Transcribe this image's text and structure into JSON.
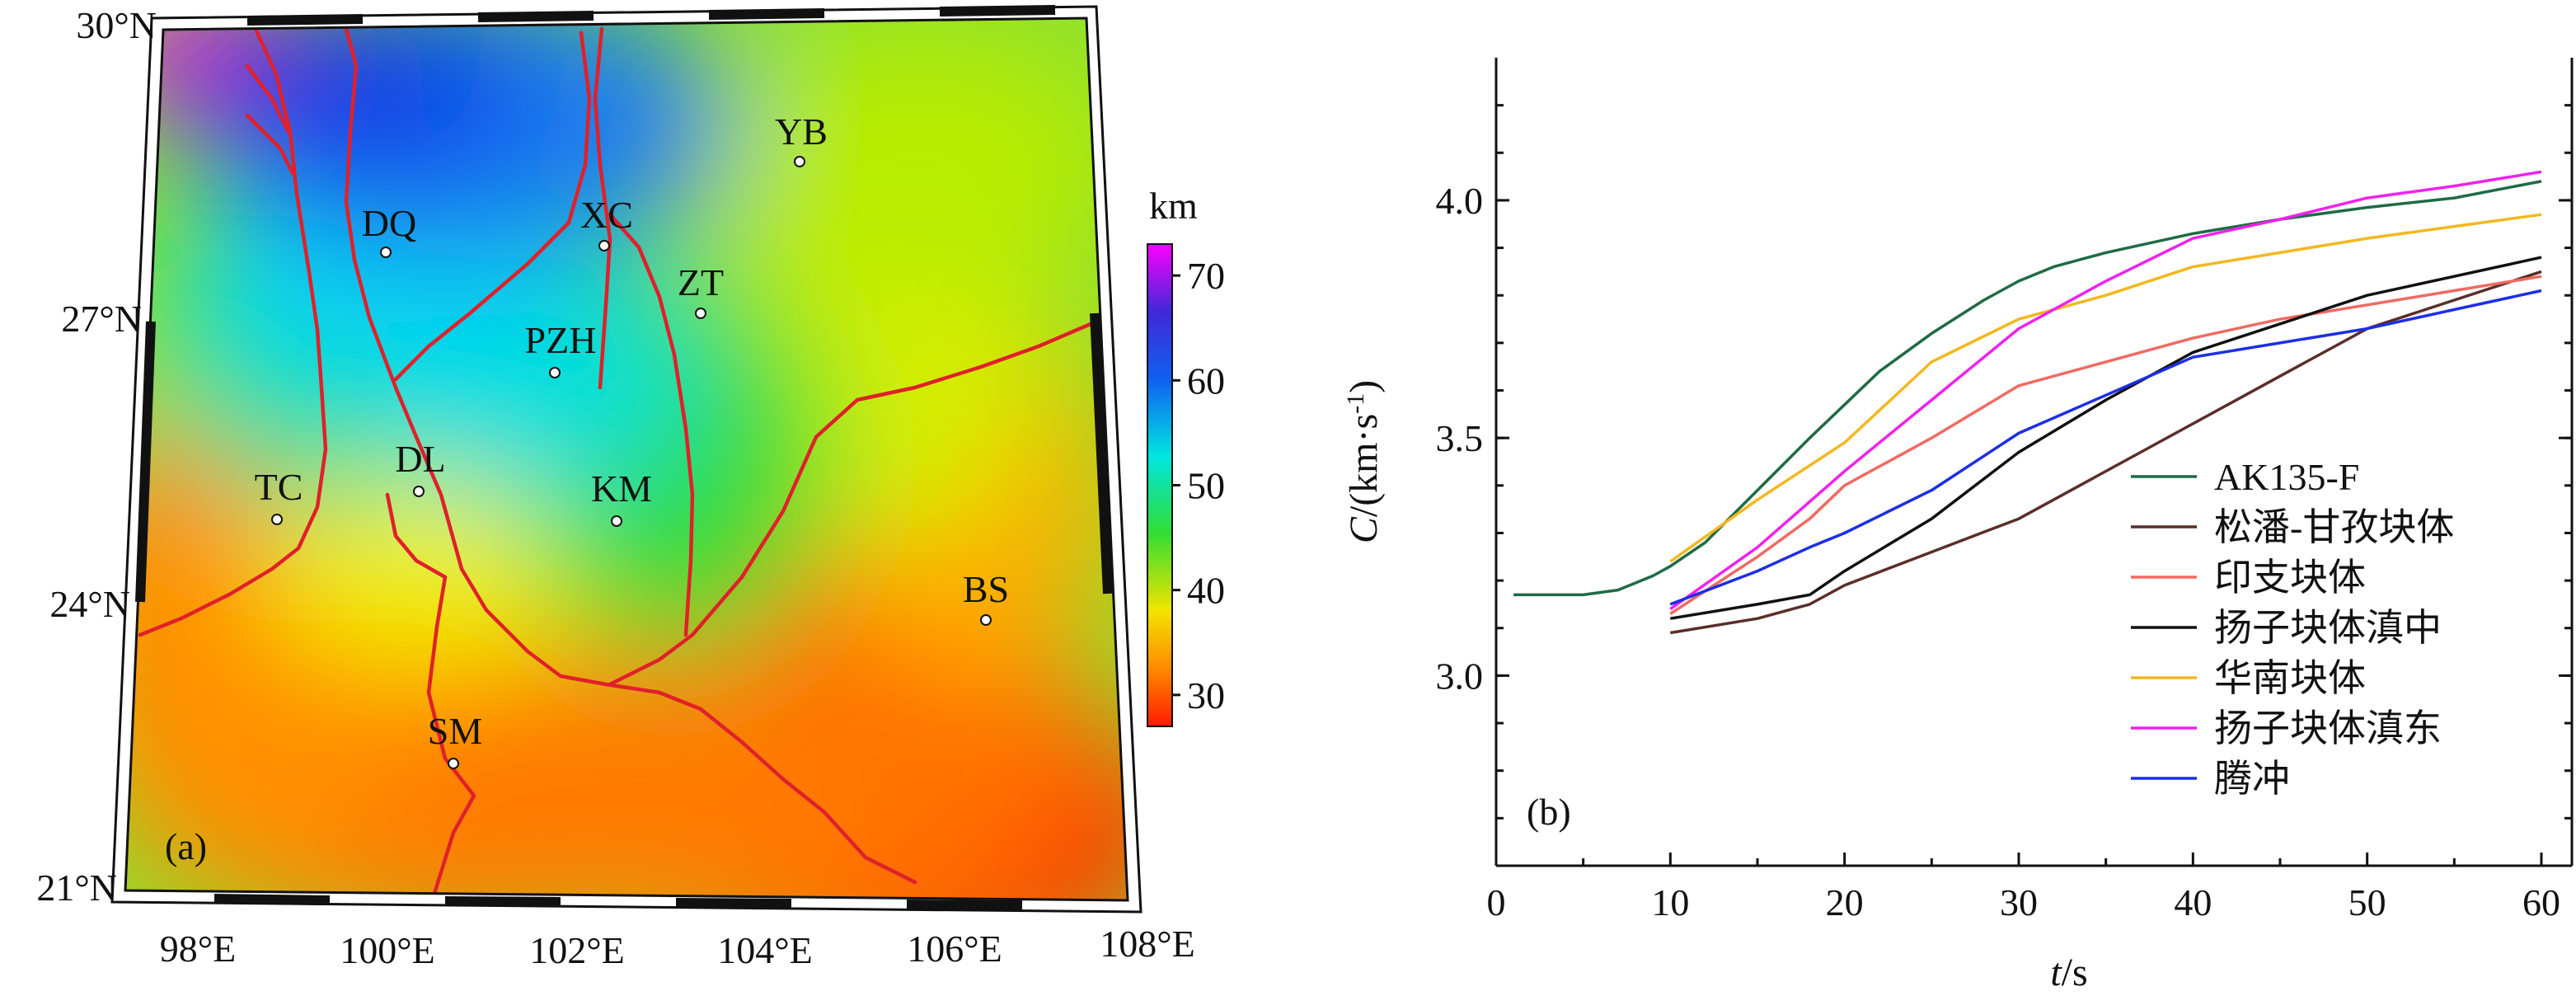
{
  "chart_data": [
    {
      "type": "heatmap",
      "panel_label": "(a)",
      "colorbar": {
        "unit": "km",
        "ticks": [
          30,
          40,
          50,
          60,
          70
        ],
        "range": [
          27,
          73
        ]
      },
      "lat_labels": [
        "30°N",
        "27°N",
        "24°N",
        "21°N"
      ],
      "lon_labels": [
        "98°E",
        "100°E",
        "102°E",
        "104°E",
        "106°E",
        "108°E"
      ],
      "stations": [
        {
          "code": "YB"
        },
        {
          "code": "DQ"
        },
        {
          "code": "XC"
        },
        {
          "code": "ZT"
        },
        {
          "code": "PZH"
        },
        {
          "code": "TC"
        },
        {
          "code": "DL"
        },
        {
          "code": "KM"
        },
        {
          "code": "BS"
        },
        {
          "code": "SM"
        }
      ]
    },
    {
      "type": "line",
      "panel_label": "(b)",
      "xlabel_italic": "t",
      "xlabel_rest": "/s",
      "ylabel_italic": "C",
      "ylabel_rest": "/(km·s",
      "ylabel_sup": "-1",
      "ylabel_close": ")",
      "xlim": [
        0,
        60
      ],
      "ylim": [
        2.6,
        4.3
      ],
      "xticks": [
        0,
        10,
        20,
        30,
        40,
        50,
        60
      ],
      "yticks": [
        "3.0",
        "3.5",
        "4.0"
      ],
      "series": [
        {
          "name": "AK135-F",
          "color": "#1e6b45",
          "x": [
            1,
            2,
            3,
            4,
            5,
            6,
            7,
            8,
            9,
            10,
            12,
            15,
            18,
            20,
            22,
            25,
            28,
            30,
            32,
            35,
            40,
            45,
            50,
            55,
            60
          ],
          "y": [
            3.17,
            3.17,
            3.17,
            3.17,
            3.17,
            3.175,
            3.18,
            3.195,
            3.21,
            3.23,
            3.28,
            3.39,
            3.5,
            3.57,
            3.64,
            3.72,
            3.79,
            3.83,
            3.86,
            3.89,
            3.93,
            3.96,
            3.985,
            4.005,
            4.04
          ]
        },
        {
          "name": "松潘-甘孜块体",
          "color": "#5a2e2a",
          "x": [
            10,
            15,
            18,
            20,
            25,
            30,
            35,
            40,
            45,
            50,
            55,
            60
          ],
          "y": [
            3.09,
            3.12,
            3.15,
            3.19,
            3.26,
            3.33,
            3.43,
            3.53,
            3.63,
            3.73,
            3.79,
            3.85
          ]
        },
        {
          "name": "印支块体",
          "color": "#f06a62",
          "x": [
            10,
            15,
            18,
            20,
            25,
            30,
            35,
            40,
            45,
            50,
            55,
            60
          ],
          "y": [
            3.13,
            3.25,
            3.33,
            3.4,
            3.5,
            3.61,
            3.66,
            3.71,
            3.75,
            3.78,
            3.81,
            3.84
          ]
        },
        {
          "name": "扬子块体滇中",
          "color": "#111111",
          "x": [
            10,
            15,
            18,
            20,
            25,
            30,
            35,
            40,
            45,
            50,
            55,
            60
          ],
          "y": [
            3.12,
            3.15,
            3.17,
            3.22,
            3.33,
            3.47,
            3.58,
            3.68,
            3.74,
            3.8,
            3.84,
            3.88
          ]
        },
        {
          "name": "华南块体",
          "color": "#f2b820",
          "x": [
            10,
            15,
            20,
            25,
            30,
            35,
            40,
            45,
            50,
            55,
            60
          ],
          "y": [
            3.24,
            3.37,
            3.49,
            3.66,
            3.75,
            3.8,
            3.86,
            3.89,
            3.92,
            3.945,
            3.97
          ]
        },
        {
          "name": "扬子块体滇东",
          "color": "#ee22ee",
          "x": [
            10,
            15,
            20,
            25,
            30,
            35,
            40,
            45,
            50,
            55,
            60
          ],
          "y": [
            3.14,
            3.27,
            3.43,
            3.58,
            3.73,
            3.83,
            3.92,
            3.96,
            4.005,
            4.03,
            4.06
          ]
        },
        {
          "name": "腾冲",
          "color": "#1d2ee6",
          "x": [
            10,
            15,
            18,
            20,
            25,
            30,
            35,
            40,
            45,
            50,
            55,
            60
          ],
          "y": [
            3.15,
            3.22,
            3.27,
            3.3,
            3.39,
            3.51,
            3.59,
            3.67,
            3.7,
            3.73,
            3.77,
            3.81
          ]
        }
      ]
    }
  ]
}
